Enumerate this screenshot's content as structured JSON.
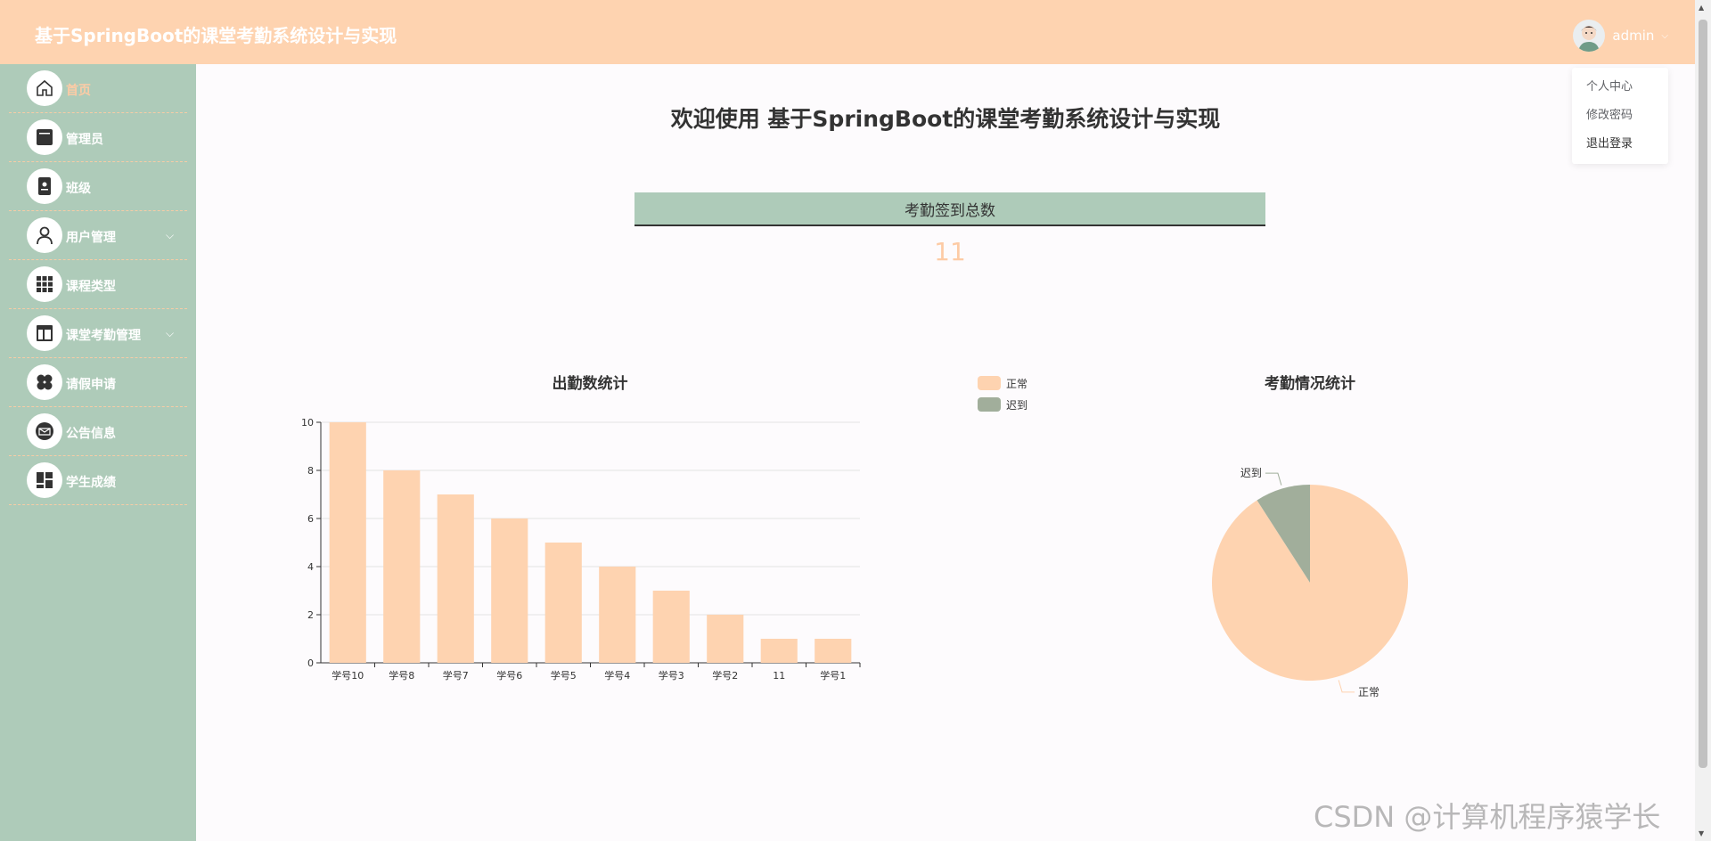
{
  "header": {
    "title": "基于SpringBoot的课堂考勤系统设计与实现",
    "user": "admin",
    "dropdown": [
      "个人中心",
      "修改密码",
      "退出登录"
    ]
  },
  "sidebar": {
    "items": [
      {
        "label": "首页",
        "icon": "home-icon",
        "active": true
      },
      {
        "label": "管理员",
        "icon": "admin-icon"
      },
      {
        "label": "班级",
        "icon": "class-icon"
      },
      {
        "label": "用户管理",
        "icon": "user-icon",
        "expandable": true
      },
      {
        "label": "课程类型",
        "icon": "grid-icon"
      },
      {
        "label": "课堂考勤管理",
        "icon": "layout-icon",
        "expandable": true
      },
      {
        "label": "请假申请",
        "icon": "clover-icon"
      },
      {
        "label": "公告信息",
        "icon": "mail-icon"
      },
      {
        "label": "学生成绩",
        "icon": "dashboard-icon"
      }
    ]
  },
  "main": {
    "welcome": "欢迎使用 基于SpringBoot的课堂考勤系统设计与实现",
    "stat": {
      "label": "考勤签到总数",
      "value": "11"
    }
  },
  "colors": {
    "accent": "#fed3b0",
    "sidebar": "#aecbb9",
    "bar": "#fed3b0",
    "late": "#a1ae9b"
  },
  "chart_data": [
    {
      "type": "bar",
      "title": "出勤数统计",
      "categories": [
        "学号10",
        "学号8",
        "学号7",
        "学号6",
        "学号5",
        "学号4",
        "学号3",
        "学号2",
        "11",
        "学号1"
      ],
      "values": [
        10,
        8,
        7,
        6,
        5,
        4,
        3,
        2,
        1,
        1
      ],
      "ylim": [
        0,
        10
      ],
      "yticks": [
        0,
        2,
        4,
        6,
        8,
        10
      ],
      "grid": true
    },
    {
      "type": "pie",
      "title": "考勤情况统计",
      "labels": [
        "正常",
        "迟到"
      ],
      "values": [
        10,
        1
      ],
      "legend": "top-left"
    }
  ],
  "watermark": "CSDN @计算机程序猿学长"
}
